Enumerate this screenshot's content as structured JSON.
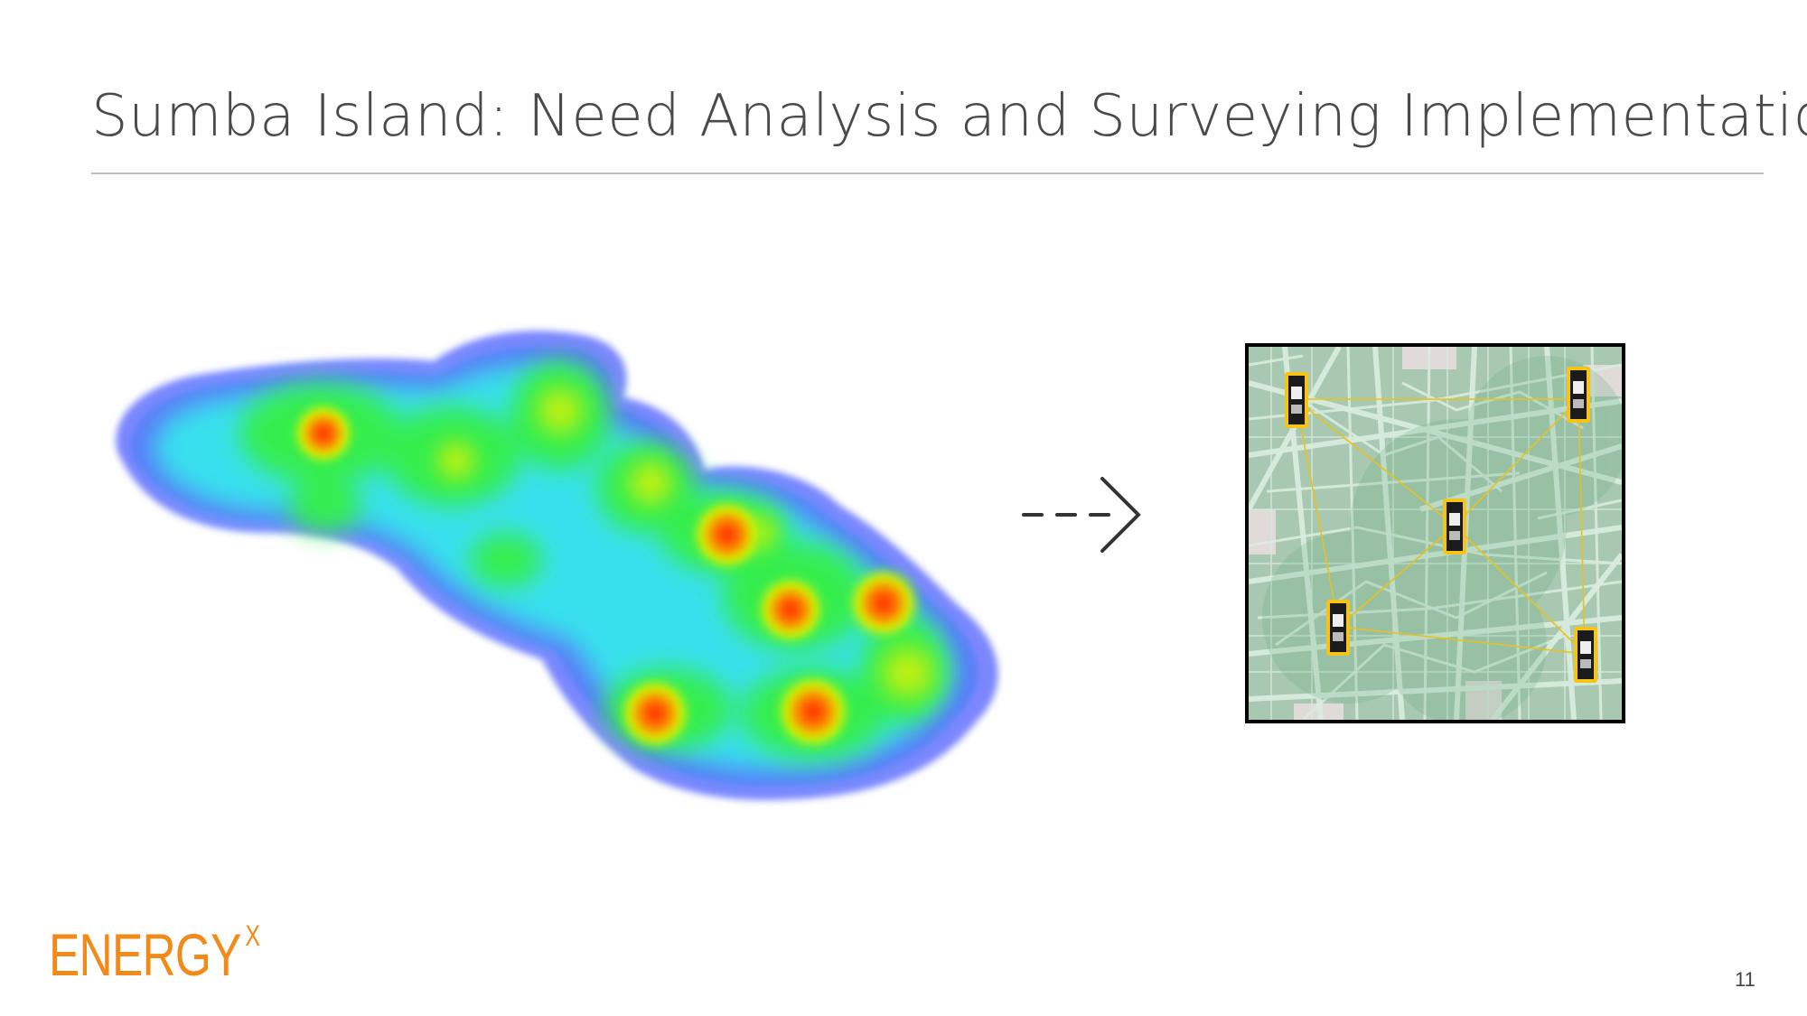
{
  "slide": {
    "title": "Sumba Island: Need Analysis and Surveying Implementation",
    "page_number": "11"
  },
  "logo": {
    "text": "ENERGY",
    "superscript": "X",
    "color": "#f28a1a"
  },
  "heatmap": {
    "icon": "island-heatmap",
    "palette": [
      "#5f7fff",
      "#36e6f0",
      "#35ef45",
      "#d8f000",
      "#ff7a00",
      "#ff2a00"
    ]
  },
  "arrow": {
    "icon": "dashed-arrow-right-icon"
  },
  "sensor_map": {
    "icon": "street-map",
    "link_color": "#e8c21a"
  }
}
